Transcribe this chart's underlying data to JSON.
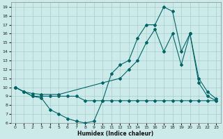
{
  "xlabel": "Humidex (Indice chaleur)",
  "bg_color": "#cceaea",
  "grid_color": "#aacccc",
  "line_color": "#006666",
  "xlim": [
    -0.5,
    23.5
  ],
  "ylim": [
    6,
    19.5
  ],
  "xticks": [
    0,
    1,
    2,
    3,
    4,
    5,
    6,
    7,
    8,
    9,
    10,
    11,
    12,
    13,
    14,
    15,
    16,
    17,
    18,
    19,
    20,
    21,
    22,
    23
  ],
  "yticks": [
    6,
    7,
    8,
    9,
    10,
    11,
    12,
    13,
    14,
    15,
    16,
    17,
    18,
    19
  ],
  "series1_x": [
    0,
    1,
    2,
    3,
    4,
    5,
    6,
    7,
    8,
    9,
    10,
    11,
    12,
    13,
    14,
    15,
    16,
    17,
    18,
    19,
    20,
    21,
    22,
    23
  ],
  "series1_y": [
    10,
    9.5,
    9,
    8.8,
    7.5,
    7,
    6.5,
    6.2,
    6,
    6.2,
    8.5,
    11.5,
    12.5,
    13,
    15.5,
    17,
    17,
    19,
    18.5,
    14,
    16,
    10.5,
    9,
    8.5
  ],
  "series2_x": [
    0,
    1,
    2,
    3,
    4,
    5,
    6,
    7,
    8,
    9,
    10,
    11,
    12,
    13,
    14,
    15,
    16,
    17,
    18,
    19,
    20,
    21,
    22,
    23
  ],
  "series2_y": [
    10,
    9.5,
    9,
    9,
    9,
    9,
    9,
    9,
    8.5,
    8.5,
    8.5,
    8.5,
    8.5,
    8.5,
    8.5,
    8.5,
    8.5,
    8.5,
    8.5,
    8.5,
    8.5,
    8.5,
    8.5,
    8.5
  ],
  "series3_x": [
    0,
    1,
    2,
    3,
    5,
    10,
    12,
    13,
    14,
    15,
    16,
    17,
    18,
    19,
    20,
    21,
    22,
    23
  ],
  "series3_y": [
    10,
    9.5,
    9.3,
    9.2,
    9.2,
    10.5,
    11,
    12,
    13,
    15,
    16.5,
    14,
    16,
    12.5,
    16,
    11,
    9.5,
    8.7
  ]
}
